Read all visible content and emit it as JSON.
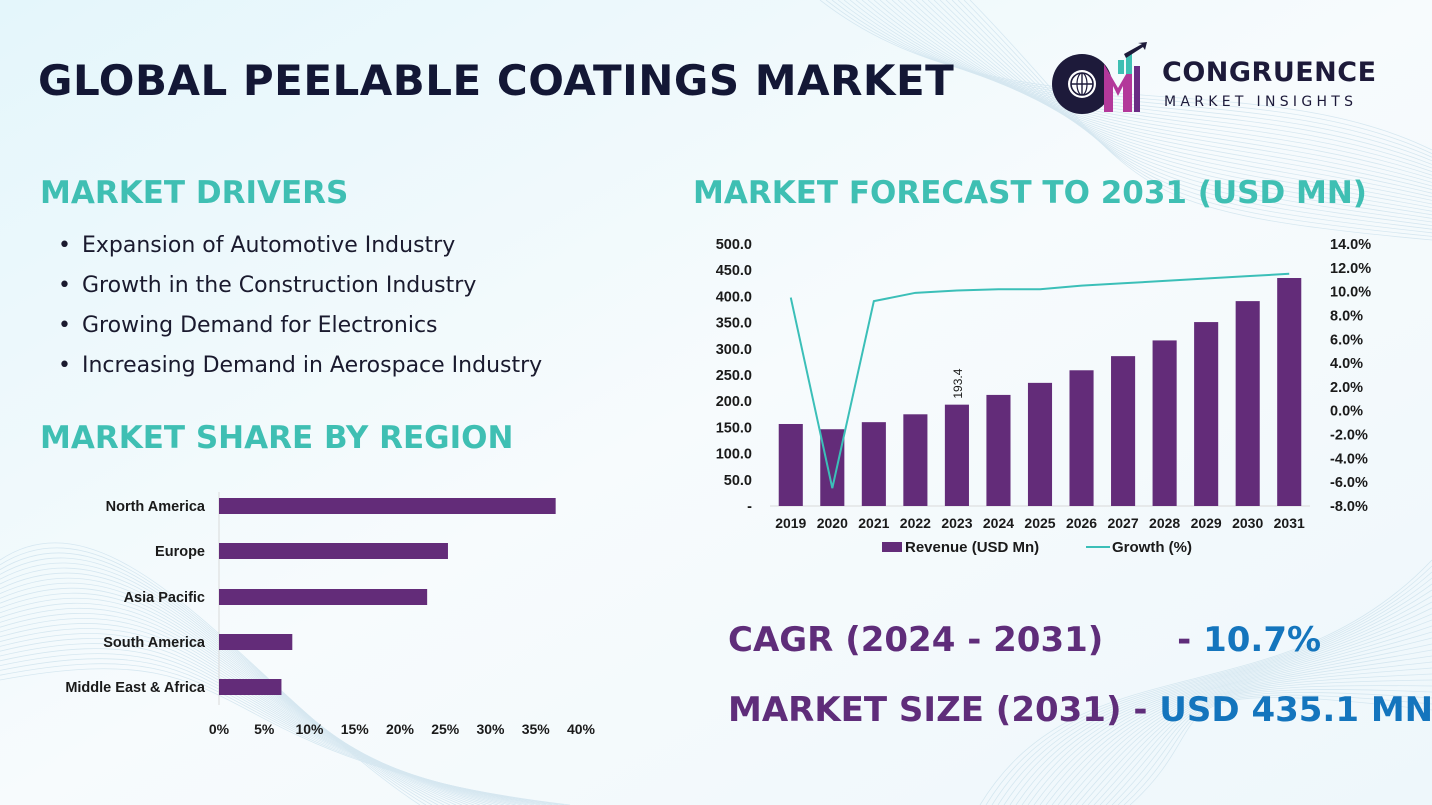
{
  "title": "GLOBAL PEELABLE COATINGS MARKET",
  "logo": {
    "name": "CONGRUENCE",
    "tagline": "MARKET INSIGHTS",
    "mark_letters": "CM"
  },
  "drivers": {
    "heading": "MARKET DRIVERS",
    "items": [
      "Expansion of Automotive Industry",
      "Growth in the Construction Industry",
      "Growing Demand for Electronics",
      "Increasing Demand in Aerospace Industry"
    ]
  },
  "region": {
    "heading": "MARKET SHARE BY REGION"
  },
  "forecast": {
    "heading": "MARKET FORECAST TO 2031 (USD MN)"
  },
  "stats": {
    "cagr_label": "CAGR (2024 - 2031)",
    "cagr_sep": "- ",
    "cagr_value": "10.7%",
    "size_label": "MARKET SIZE (2031)",
    "size_sep": " - ",
    "size_value": "USD 435.1 MN"
  },
  "colors": {
    "bar_purple": "#632c79",
    "line_teal": "#3bbfb8",
    "heading_teal": "#3fbfb3",
    "title_navy": "#131735",
    "stat_purple": "#5f2d7a",
    "stat_blue": "#1475bd"
  },
  "chart_data": [
    {
      "type": "bar",
      "orientation": "horizontal",
      "categories": [
        "North America",
        "Europe",
        "Asia Pacific",
        "South America",
        "Middle East & Africa"
      ],
      "values": [
        37.2,
        25.3,
        23.0,
        8.1,
        6.9
      ],
      "xlim": [
        0,
        40
      ],
      "x_ticks": [
        "0%",
        "5%",
        "10%",
        "15%",
        "20%",
        "25%",
        "30%",
        "35%",
        "40%"
      ],
      "x_tick_values": [
        0,
        5,
        10,
        15,
        20,
        25,
        30,
        35,
        40
      ],
      "grid": false,
      "legend": "none"
    },
    {
      "type": "bar",
      "categories": [
        "2019",
        "2020",
        "2021",
        "2022",
        "2023",
        "2024",
        "2025",
        "2026",
        "2027",
        "2028",
        "2029",
        "2030",
        "2031"
      ],
      "series": [
        {
          "name": "Revenue (USD Mn)",
          "type": "bar",
          "axis": "left",
          "values": [
            156.5,
            146.5,
            160.0,
            175.0,
            193.4,
            212.0,
            235.0,
            259.0,
            286.0,
            316.0,
            351.0,
            391.0,
            435.1
          ]
        },
        {
          "name": "Growth (%)",
          "type": "line",
          "axis": "right",
          "values": [
            9.5,
            -6.5,
            9.2,
            9.9,
            10.1,
            10.2,
            10.2,
            10.5,
            10.7,
            10.9,
            11.1,
            11.3,
            11.5
          ]
        }
      ],
      "data_labels": [
        {
          "category": "2023",
          "text": "193.4"
        }
      ],
      "ylim": [
        0,
        500
      ],
      "y_ticks": [
        "-",
        "50.0",
        "100.0",
        "150.0",
        "200.0",
        "250.0",
        "300.0",
        "350.0",
        "400.0",
        "450.0",
        "500.0"
      ],
      "y_tick_values": [
        0,
        50,
        100,
        150,
        200,
        250,
        300,
        350,
        400,
        450,
        500
      ],
      "y2lim": [
        -8,
        14
      ],
      "y2_ticks": [
        "-8.0%",
        "-6.0%",
        "-4.0%",
        "-2.0%",
        "0.0%",
        "2.0%",
        "4.0%",
        "6.0%",
        "8.0%",
        "10.0%",
        "12.0%",
        "14.0%"
      ],
      "y2_tick_values": [
        -8,
        -6,
        -4,
        -2,
        0,
        2,
        4,
        6,
        8,
        10,
        12,
        14
      ],
      "grid": false,
      "legend": "bottom"
    }
  ]
}
